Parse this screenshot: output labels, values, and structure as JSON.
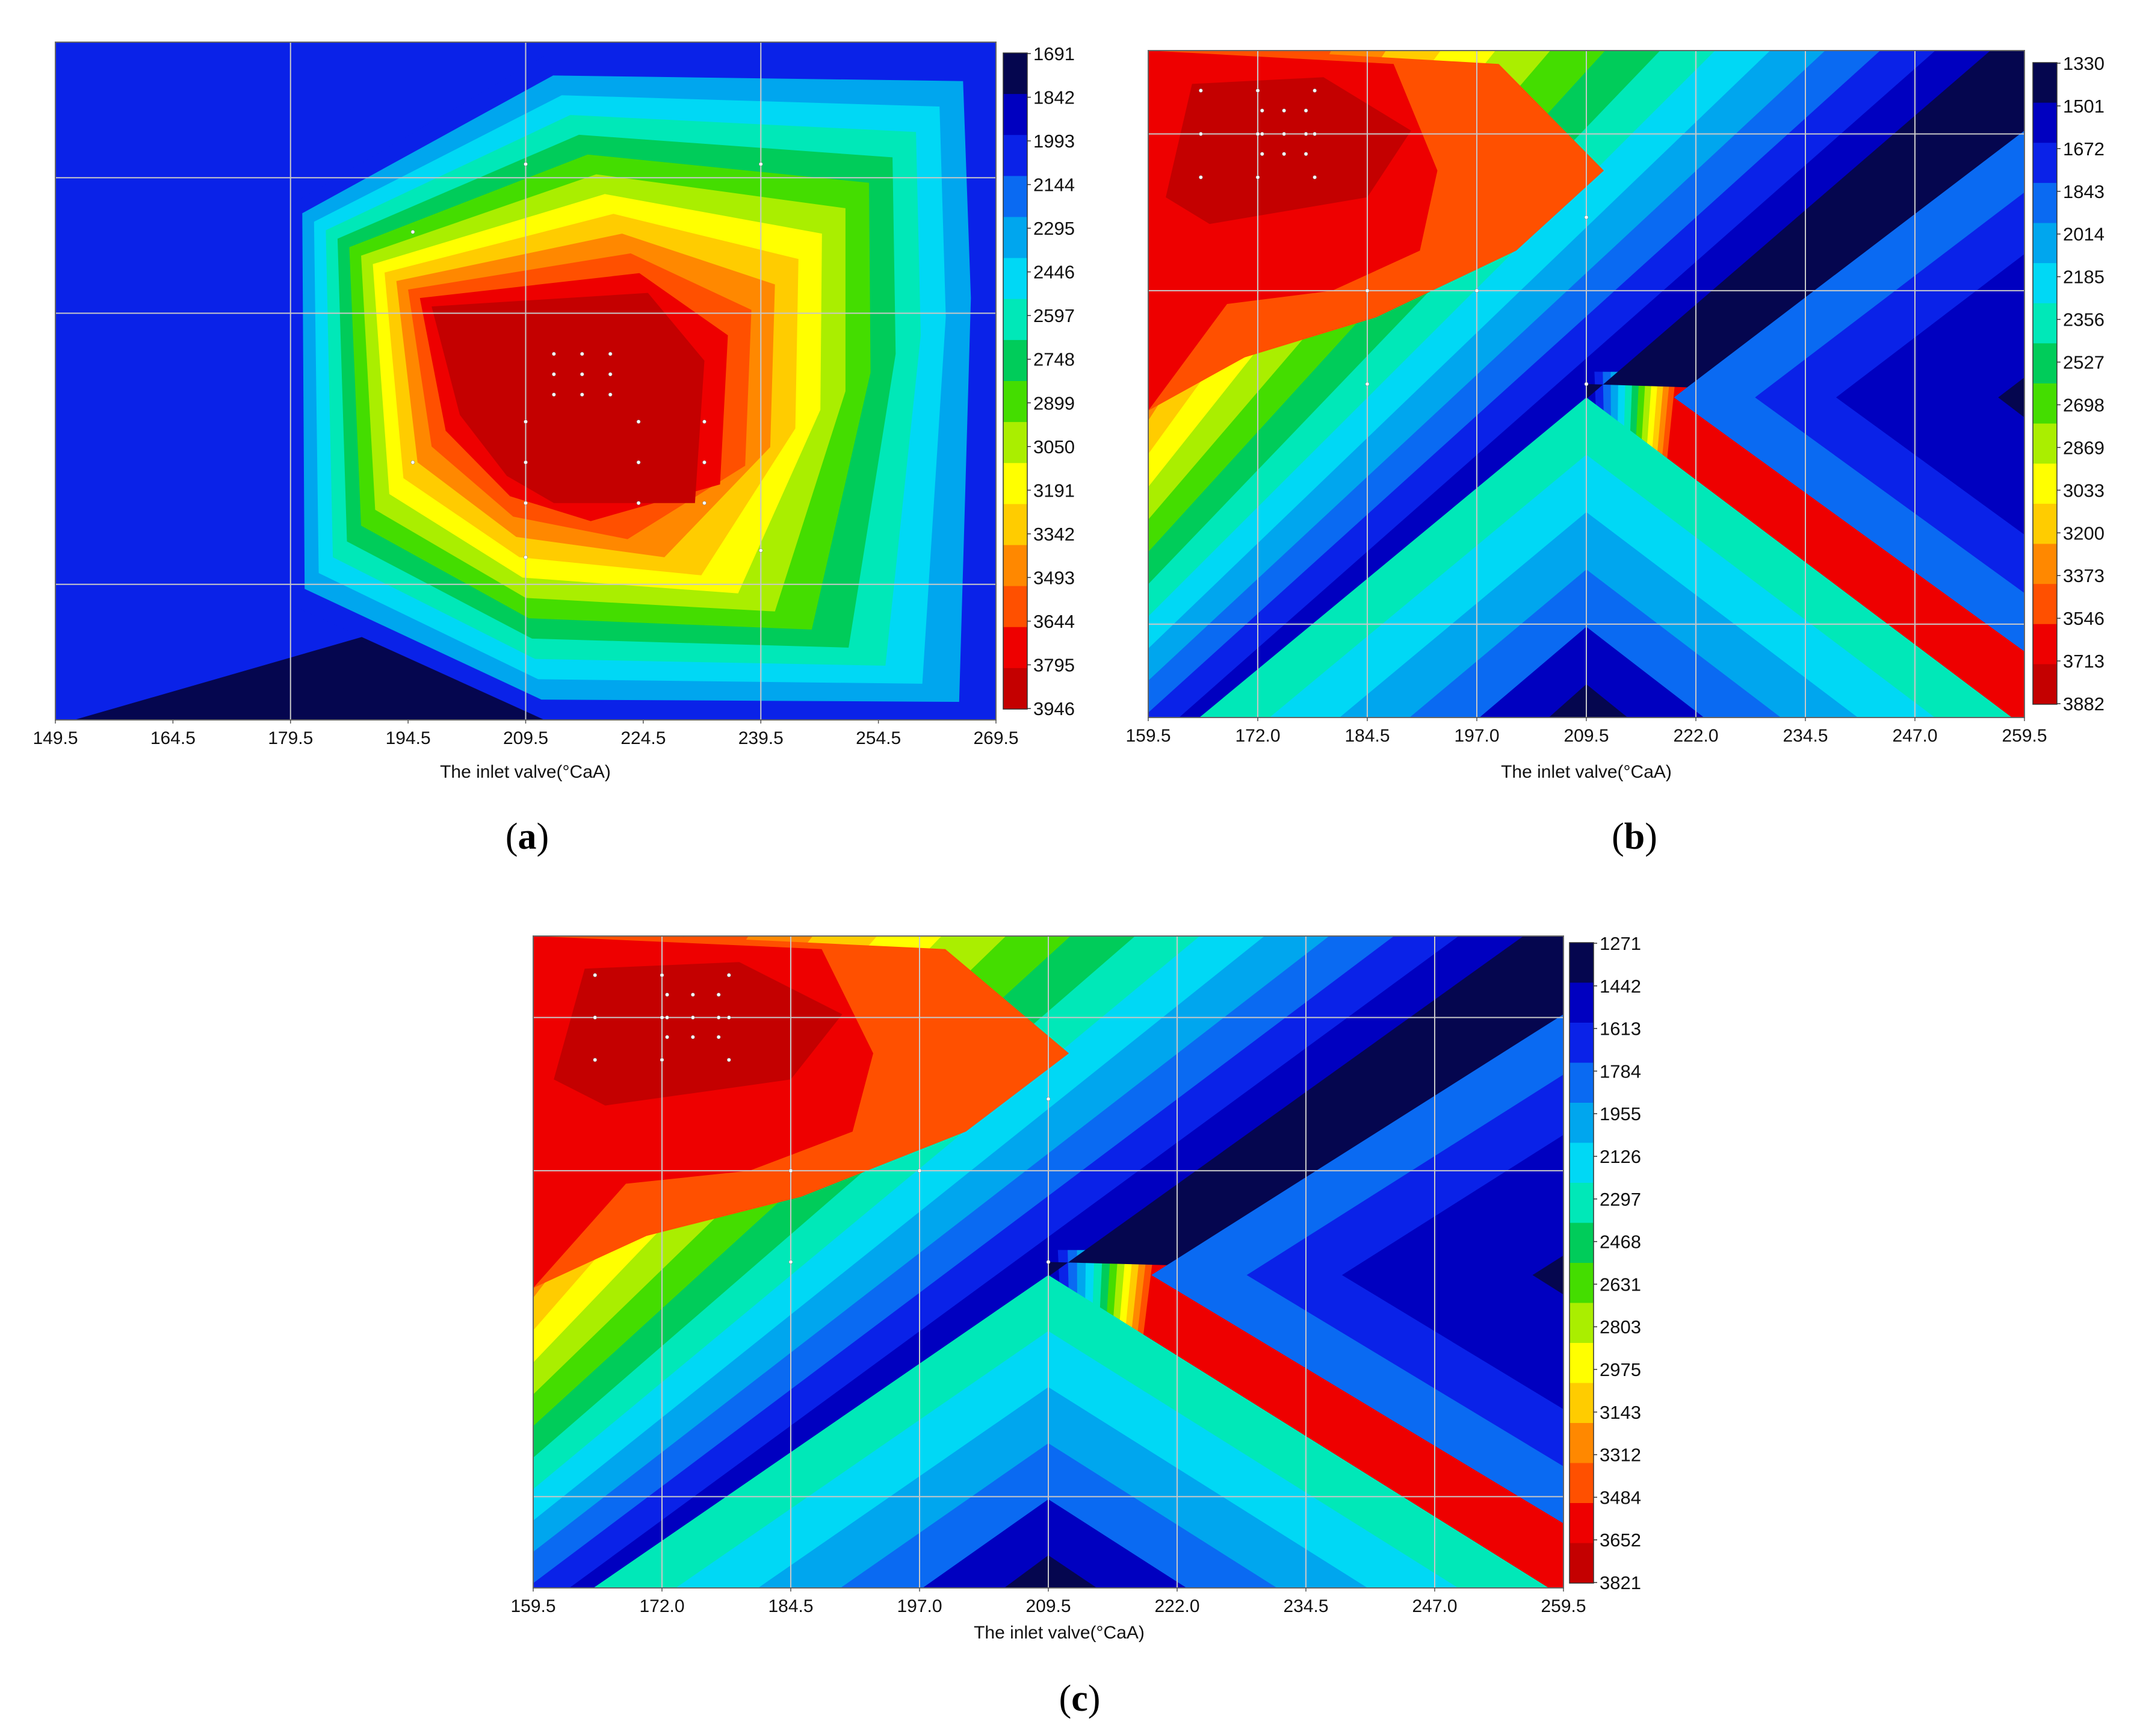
{
  "chart_data": [
    {
      "type": "heatmap",
      "panel_label": "a",
      "xlabel": "The inlet valve(°CaA)",
      "x_ticks": [
        "149.5",
        "164.5",
        "179.5",
        "194.5",
        "209.5",
        "224.5",
        "239.5",
        "254.5",
        "269.5"
      ],
      "xlim": [
        149.5,
        269.5
      ],
      "ylim": [
        0,
        1
      ],
      "grid": true,
      "colorbar": {
        "ticks": [
          "1691",
          "1842",
          "1993",
          "2144",
          "2295",
          "2446",
          "2597",
          "2748",
          "2899",
          "3050",
          "3191",
          "3342",
          "3493",
          "3644",
          "3795",
          "3946"
        ],
        "colors": [
          "#05064f",
          "#0000c0",
          "#0a22e8",
          "#0a6af2",
          "#00a6ee",
          "#00d8f5",
          "#00e8b8",
          "#00cc5a",
          "#44dd00",
          "#aaee00",
          "#ffff00",
          "#ffcc00",
          "#ff8800",
          "#ff5000",
          "#ee0000",
          "#c40000"
        ]
      },
      "contour_levels_from_outside_in": [
        2,
        4,
        5,
        6,
        7,
        8,
        9,
        10,
        11,
        12,
        13,
        14,
        15
      ],
      "low_region_levels": [
        0
      ]
    },
    {
      "type": "heatmap",
      "panel_label": "b",
      "xlabel": "The inlet valve(°CaA)",
      "x_ticks": [
        "159.5",
        "172.0",
        "184.5",
        "197.0",
        "209.5",
        "222.0",
        "234.5",
        "247.0",
        "259.5"
      ],
      "xlim": [
        159.5,
        259.5
      ],
      "ylim": [
        0,
        1
      ],
      "grid": true,
      "colorbar": {
        "ticks": [
          "1330",
          "1501",
          "1672",
          "1843",
          "2014",
          "2185",
          "2356",
          "2527",
          "2698",
          "2869",
          "3033",
          "3200",
          "3373",
          "3546",
          "3713",
          "3882"
        ],
        "colors": [
          "#05064f",
          "#0000c0",
          "#0a22e8",
          "#0a6af2",
          "#00a6ee",
          "#00d8f5",
          "#00e8b8",
          "#00cc5a",
          "#44dd00",
          "#aaee00",
          "#ffff00",
          "#ffcc00",
          "#ff8800",
          "#ff5000",
          "#ee0000",
          "#c40000"
        ]
      }
    },
    {
      "type": "heatmap",
      "panel_label": "c",
      "xlabel": "The inlet valve(°CaA)",
      "x_ticks": [
        "159.5",
        "172.0",
        "184.5",
        "197.0",
        "209.5",
        "222.0",
        "234.5",
        "247.0",
        "259.5"
      ],
      "xlim": [
        159.5,
        259.5
      ],
      "ylim": [
        0,
        1
      ],
      "grid": true,
      "colorbar": {
        "ticks": [
          "1271",
          "1442",
          "1613",
          "1784",
          "1955",
          "2126",
          "2297",
          "2468",
          "2631",
          "2803",
          "2975",
          "3143",
          "3312",
          "3484",
          "3652",
          "3821"
        ],
        "colors": [
          "#05064f",
          "#0000c0",
          "#0a22e8",
          "#0a6af2",
          "#00a6ee",
          "#00d8f5",
          "#00e8b8",
          "#00cc5a",
          "#44dd00",
          "#aaee00",
          "#ffff00",
          "#ffcc00",
          "#ff8800",
          "#ff5000",
          "#ee0000",
          "#c40000"
        ]
      }
    }
  ]
}
